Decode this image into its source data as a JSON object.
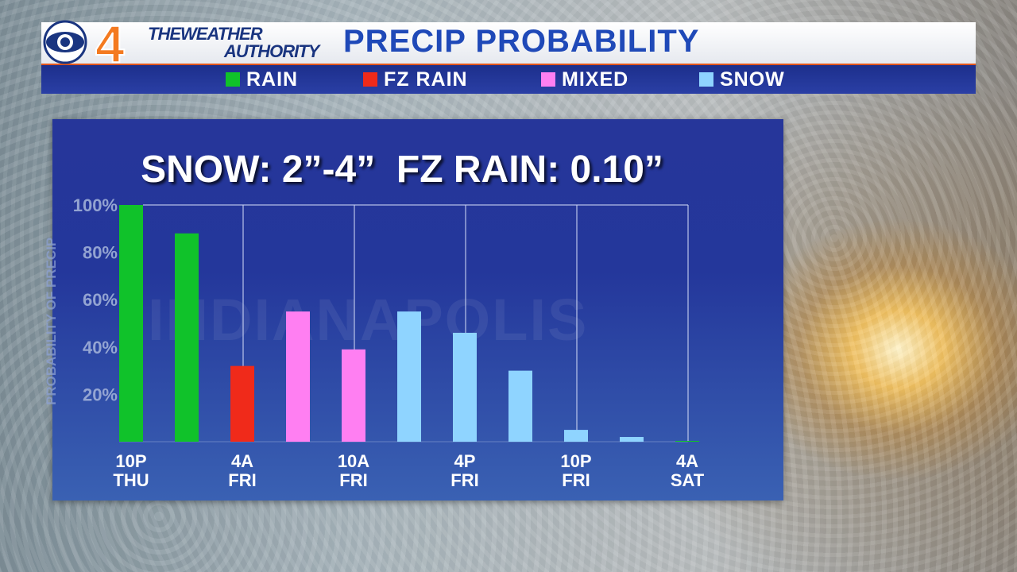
{
  "header": {
    "logo_text": "4",
    "brand_line1": "THEWEATHER",
    "brand_line2": "AUTHORITY",
    "title": "PRECIP PROBABILITY"
  },
  "legend": [
    {
      "label": "RAIN",
      "color": "#10c22a"
    },
    {
      "label": "FZ RAIN",
      "color": "#f02a1a"
    },
    {
      "label": "MIXED",
      "color": "#ff7ff2"
    },
    {
      "label": "SNOW",
      "color": "#8fd4ff"
    }
  ],
  "watermark": "INDIANAPOLIS",
  "chart_data": {
    "type": "bar",
    "title": "SNOW: 2”-4”  FZ RAIN: 0.10”",
    "ylabel": "PROBABILITY OF PRECIP",
    "ylim": [
      0,
      100
    ],
    "yticks": [
      "20%",
      "40%",
      "60%",
      "80%",
      "100%"
    ],
    "ytick_values": [
      20,
      40,
      60,
      80,
      100
    ],
    "grid": "vertical",
    "xtick_labels": [
      {
        "line1": "10P",
        "line2": "THU",
        "index": 0
      },
      {
        "line1": "4A",
        "line2": "FRI",
        "index": 2
      },
      {
        "line1": "10A",
        "line2": "FRI",
        "index": 4
      },
      {
        "line1": "4P",
        "line2": "FRI",
        "index": 6
      },
      {
        "line1": "10P",
        "line2": "FRI",
        "index": 8
      },
      {
        "line1": "4A",
        "line2": "SAT",
        "index": 10
      }
    ],
    "bars": [
      {
        "value": 100,
        "type": "RAIN"
      },
      {
        "value": 88,
        "type": "RAIN"
      },
      {
        "value": 32,
        "type": "FZ RAIN"
      },
      {
        "value": 55,
        "type": "MIXED"
      },
      {
        "value": 39,
        "type": "MIXED"
      },
      {
        "value": 55,
        "type": "SNOW"
      },
      {
        "value": 46,
        "type": "SNOW"
      },
      {
        "value": 30,
        "type": "SNOW"
      },
      {
        "value": 5,
        "type": "SNOW"
      },
      {
        "value": 2,
        "type": "SNOW"
      },
      {
        "value": 0,
        "type": "RAIN"
      }
    ]
  }
}
